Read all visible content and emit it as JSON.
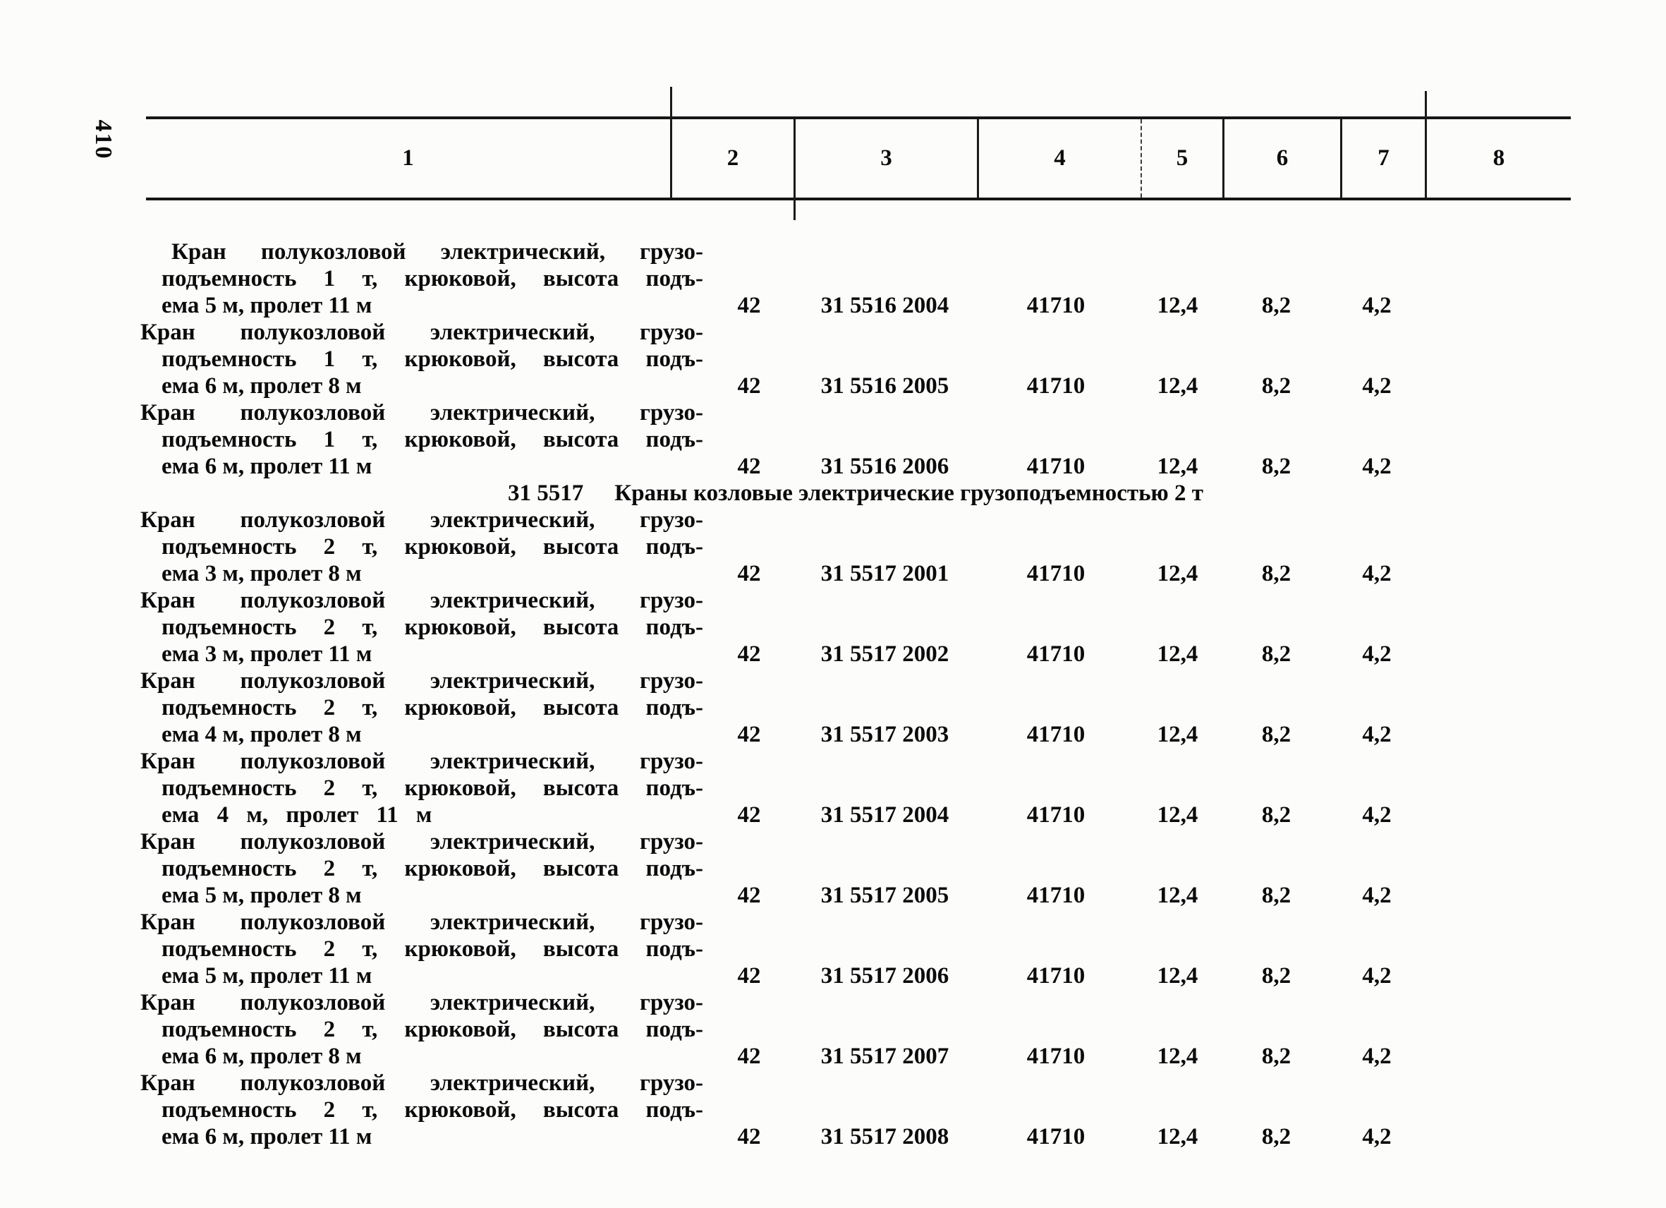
{
  "page": {
    "number": "410"
  },
  "table": {
    "column_headers": [
      "1",
      "2",
      "3",
      "4",
      "5",
      "6",
      "7",
      "8"
    ],
    "rows": [
      {
        "type": "item",
        "first_item": true,
        "wide_line3": false,
        "desc_lines": [
          "Кран полукозловой электрический, грузо-",
          "подъемность 1 т, крюковой, высота подъ-",
          "ема 5 м, пролет 11 м"
        ],
        "values": [
          "42",
          "31 5516 2004",
          "41710",
          "12,4",
          "8,2",
          "4,2",
          ""
        ]
      },
      {
        "type": "item",
        "first_item": false,
        "wide_line3": false,
        "desc_lines": [
          "Кран полукозловой электрический, грузо-",
          "подъемность 1 т, крюковой, высота подъ-",
          "ема 6 м, пролет 8 м"
        ],
        "values": [
          "42",
          "31 5516 2005",
          "41710",
          "12,4",
          "8,2",
          "4,2",
          ""
        ]
      },
      {
        "type": "item",
        "first_item": false,
        "wide_line3": false,
        "desc_lines": [
          "Кран полукозловой электрический, грузо-",
          "подъемность 1 т, крюковой, высота подъ-",
          "ема 6 м, пролет 11 м"
        ],
        "values": [
          "42",
          "31 5516 2006",
          "41710",
          "12,4",
          "8,2",
          "4,2",
          ""
        ]
      },
      {
        "type": "section",
        "code": "31 5517",
        "title": "Краны козловые электрические грузоподъемностью 2 т"
      },
      {
        "type": "item",
        "first_item": false,
        "wide_line3": false,
        "desc_lines": [
          "Кран полукозловой электрический, грузо-",
          "подъемность 2 т, крюковой, высота подъ-",
          "ема 3 м, пролет 8 м"
        ],
        "values": [
          "42",
          "31 5517 2001",
          "41710",
          "12,4",
          "8,2",
          "4,2",
          ""
        ]
      },
      {
        "type": "item",
        "first_item": false,
        "wide_line3": false,
        "desc_lines": [
          "Кран полукозловой электрический, грузо-",
          "подъемность 2 т, крюковой, высота подъ-",
          "ема 3 м, пролет 11 м"
        ],
        "values": [
          "42",
          "31 5517 2002",
          "41710",
          "12,4",
          "8,2",
          "4,2",
          ""
        ]
      },
      {
        "type": "item",
        "first_item": false,
        "wide_line3": false,
        "desc_lines": [
          "Кран полукозловой электрический, грузо-",
          "подъемность 2 т, крюковой, высота подъ-",
          "ема 4 м, пролет 8 м"
        ],
        "values": [
          "42",
          "31 5517 2003",
          "41710",
          "12,4",
          "8,2",
          "4,2",
          ""
        ]
      },
      {
        "type": "item",
        "first_item": false,
        "wide_line3": true,
        "desc_lines": [
          "Кран полукозловой электрический, грузо-",
          "подъемность 2 т, крюковой, высота подъ-",
          "ема 4 м, пролет 11 м"
        ],
        "values": [
          "42",
          "31 5517 2004",
          "41710",
          "12,4",
          "8,2",
          "4,2",
          ""
        ]
      },
      {
        "type": "item",
        "first_item": false,
        "wide_line3": false,
        "desc_lines": [
          "Кран полукозловой электрический, грузо-",
          "подъемность 2 т, крюковой, высота подъ-",
          "ема 5 м, пролет 8 м"
        ],
        "values": [
          "42",
          "31 5517 2005",
          "41710",
          "12,4",
          "8,2",
          "4,2",
          ""
        ]
      },
      {
        "type": "item",
        "first_item": false,
        "wide_line3": false,
        "desc_lines": [
          "Кран полукозловой электрический, грузо-",
          "подъемность 2 т, крюковой, высота подъ-",
          "ема 5 м, пролет 11 м"
        ],
        "values": [
          "42",
          "31 5517 2006",
          "41710",
          "12,4",
          "8,2",
          "4,2",
          ""
        ]
      },
      {
        "type": "item",
        "first_item": false,
        "wide_line3": false,
        "desc_lines": [
          "Кран полукозловой электрический, грузо-",
          "подъемность 2 т, крюковой, высота подъ-",
          "ема 6 м, пролет 8 м"
        ],
        "values": [
          "42",
          "31 5517 2007",
          "41710",
          "12,4",
          "8,2",
          "4,2",
          ""
        ]
      },
      {
        "type": "item",
        "first_item": false,
        "wide_line3": false,
        "desc_lines": [
          "Кран полукозловой электрический, грузо-",
          "подъемность 2 т, крюковой, высота подъ-",
          "ема 6 м, пролет 11 м"
        ],
        "values": [
          "42",
          "31 5517 2008",
          "41710",
          "12,4",
          "8,2",
          "4,2",
          ""
        ]
      }
    ]
  }
}
